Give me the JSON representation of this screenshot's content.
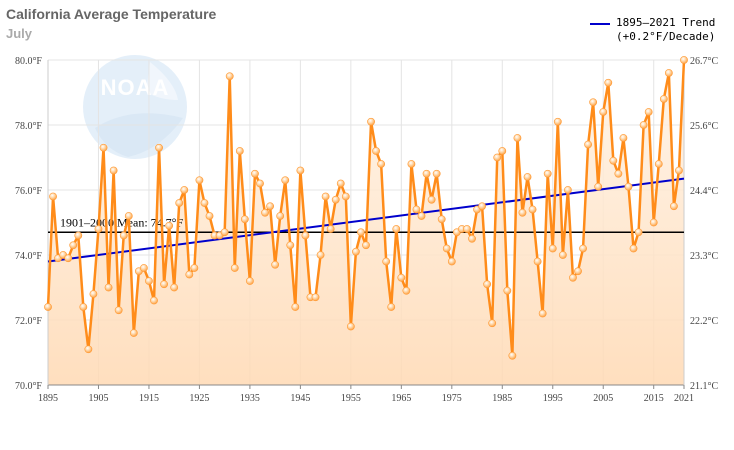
{
  "chart_data": {
    "type": "line",
    "title": "California Average Temperature",
    "subtitle": "July",
    "x_tick_labels": [
      "1895",
      "1905",
      "1915",
      "1925",
      "1935",
      "1945",
      "1955",
      "1965",
      "1975",
      "1985",
      "1995",
      "2005",
      "2015",
      "2021"
    ],
    "x_ticks": [
      1895,
      1905,
      1915,
      1925,
      1935,
      1945,
      1955,
      1965,
      1975,
      1985,
      1995,
      2005,
      2015,
      2021
    ],
    "y_left_ticks": [
      "70.0°F",
      "72.0°F",
      "74.0°F",
      "76.0°F",
      "78.0°F",
      "80.0°F"
    ],
    "y_right_ticks": [
      "21.1°C",
      "22.2°C",
      "23.3°C",
      "24.4°C",
      "25.6°C",
      "26.7°C"
    ],
    "xlim": [
      1895,
      2021
    ],
    "ylim": [
      70,
      80
    ],
    "grid": true,
    "legend_position": "top-right",
    "mean": {
      "label": "1901–2000 Mean: 74.7°F",
      "value": 74.7,
      "color": "#000000"
    },
    "trend": {
      "legend_line1": "1895–2021 Trend",
      "legend_line2": "(+0.2°F/Decade)",
      "start": 73.8,
      "end": 76.35,
      "color": "#0000cc"
    },
    "series": [
      {
        "color": "#ff8c1a",
        "x": [
          1895,
          1896,
          1897,
          1898,
          1899,
          1900,
          1901,
          1902,
          1903,
          1904,
          1905,
          1906,
          1907,
          1908,
          1909,
          1910,
          1911,
          1912,
          1913,
          1914,
          1915,
          1916,
          1917,
          1918,
          1919,
          1920,
          1921,
          1922,
          1923,
          1924,
          1925,
          1926,
          1927,
          1928,
          1929,
          1930,
          1931,
          1932,
          1933,
          1934,
          1935,
          1936,
          1937,
          1938,
          1939,
          1940,
          1941,
          1942,
          1943,
          1944,
          1945,
          1946,
          1947,
          1948,
          1949,
          1950,
          1951,
          1952,
          1953,
          1954,
          1955,
          1956,
          1957,
          1958,
          1959,
          1960,
          1961,
          1962,
          1963,
          1964,
          1965,
          1966,
          1967,
          1968,
          1969,
          1970,
          1971,
          1972,
          1973,
          1974,
          1975,
          1976,
          1977,
          1978,
          1979,
          1980,
          1981,
          1982,
          1983,
          1984,
          1985,
          1986,
          1987,
          1988,
          1989,
          1990,
          1991,
          1992,
          1993,
          1994,
          1995,
          1996,
          1997,
          1998,
          1999,
          2000,
          2001,
          2002,
          2003,
          2004,
          2005,
          2006,
          2007,
          2008,
          2009,
          2010,
          2011,
          2012,
          2013,
          2014,
          2015,
          2016,
          2017,
          2018,
          2019,
          2020,
          2021
        ],
        "values": [
          72.4,
          75.8,
          73.9,
          74.0,
          73.9,
          74.3,
          74.6,
          72.4,
          71.1,
          72.8,
          74.8,
          77.3,
          73.0,
          76.6,
          72.3,
          74.6,
          75.2,
          71.6,
          73.5,
          73.6,
          73.2,
          72.6,
          77.3,
          73.1,
          74.9,
          73.0,
          75.6,
          76.0,
          73.4,
          73.6,
          76.3,
          75.6,
          75.2,
          74.6,
          74.6,
          74.7,
          79.5,
          73.6,
          77.2,
          75.1,
          73.2,
          76.5,
          76.2,
          75.3,
          75.5,
          73.7,
          75.2,
          76.3,
          74.3,
          72.4,
          76.6,
          74.6,
          72.7,
          72.7,
          74.0,
          75.8,
          74.8,
          75.7,
          76.2,
          75.8,
          71.8,
          74.1,
          74.7,
          74.3,
          78.1,
          77.2,
          76.8,
          73.8,
          72.4,
          74.8,
          73.3,
          72.9,
          76.8,
          75.4,
          75.2,
          76.5,
          75.7,
          76.5,
          75.1,
          74.2,
          73.8,
          74.7,
          74.8,
          74.8,
          74.5,
          75.4,
          75.5,
          73.1,
          71.9,
          77.0,
          77.2,
          72.9,
          70.9,
          77.6,
          75.3,
          76.4,
          75.4,
          73.8,
          72.2,
          76.5,
          74.2,
          78.1,
          74.0,
          76.0,
          73.3,
          73.5,
          74.2,
          77.4,
          78.7,
          76.1,
          78.4,
          79.3,
          76.9,
          76.5,
          77.6,
          76.1,
          74.2,
          74.7,
          78.0,
          78.4,
          75.0,
          76.8,
          78.8,
          79.6,
          75.5,
          76.6,
          80.0
        ]
      }
    ]
  }
}
